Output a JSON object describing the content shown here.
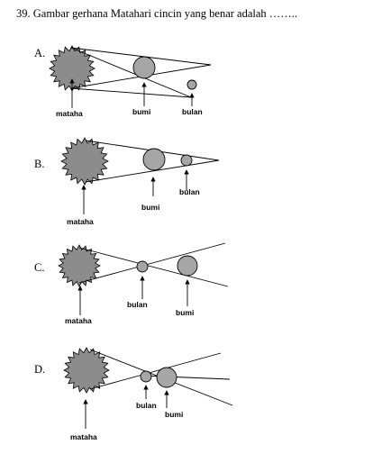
{
  "question": "39. Gambar gerhana Matahari cincin  yang benar adalah ……..",
  "options": [
    {
      "letter": "A.",
      "labels": {
        "sun": "mataha",
        "earth": "bumi",
        "moon": "bulan"
      }
    },
    {
      "letter": "B.",
      "labels": {
        "sun": "mataha",
        "earth": "bumi",
        "moon": "bulan"
      }
    },
    {
      "letter": "C.",
      "labels": {
        "sun": "mataha",
        "moon": "bulan",
        "earth": "bumi"
      }
    },
    {
      "letter": "D.",
      "labels": {
        "sun": "mataha",
        "moon": "bulan",
        "earth": "bumi"
      }
    }
  ],
  "colors": {
    "sun": "#8c8c8c",
    "body": "#a6a6a6",
    "line": "#000000"
  },
  "icons": [
    "sun-icon",
    "earth-icon",
    "moon-icon",
    "arrow-icon"
  ]
}
